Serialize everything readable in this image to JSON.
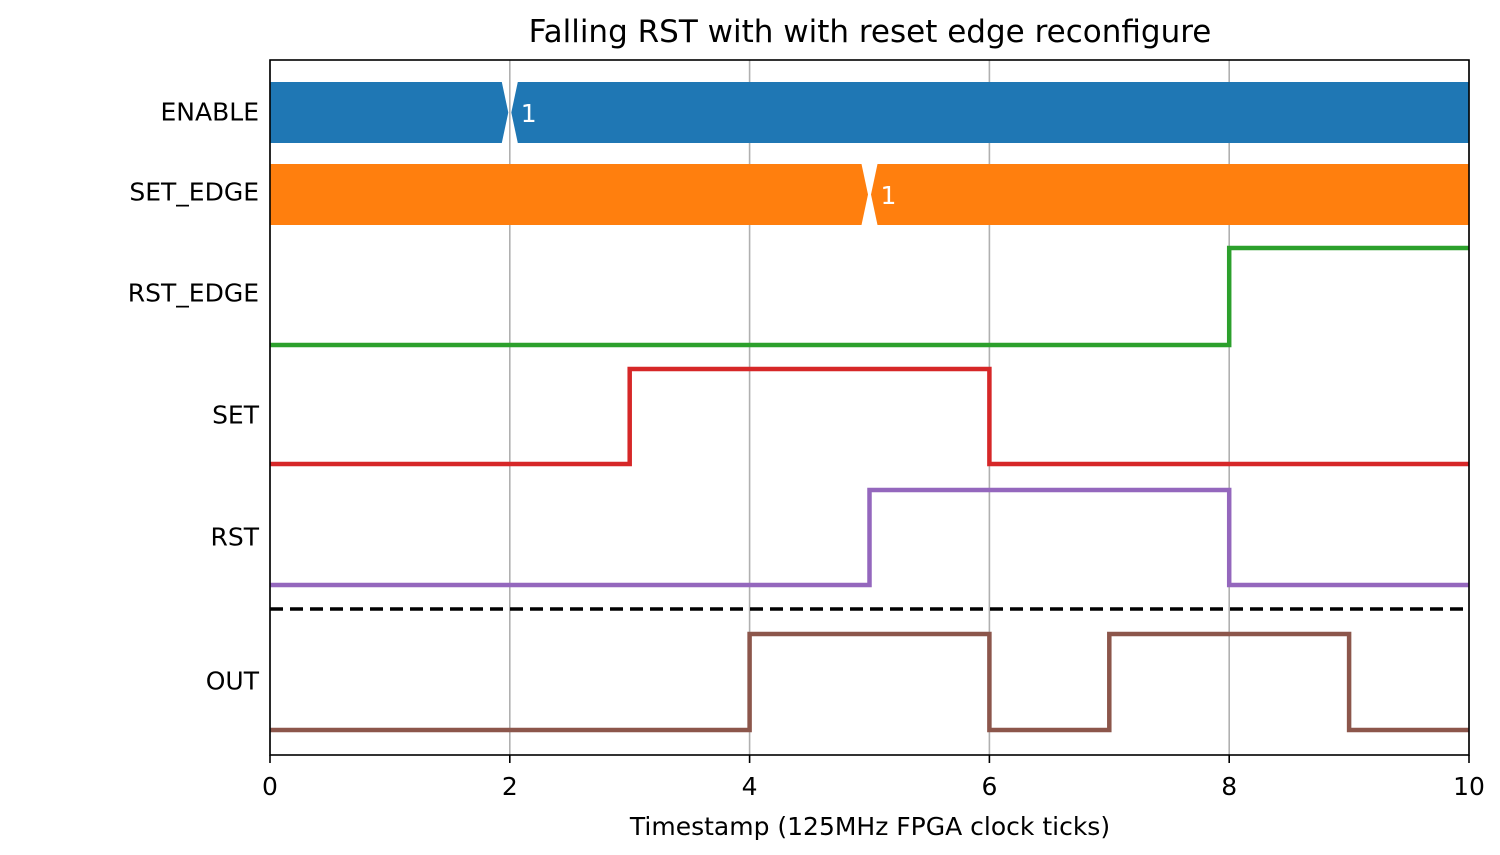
{
  "chart_data": {
    "type": "line",
    "title": "Falling RST with with reset edge reconfigure",
    "xlabel": "Timestamp (125MHz FPGA clock ticks)",
    "ylabel": "",
    "xlim": [
      0,
      10
    ],
    "x_ticks": [
      "0",
      "2",
      "4",
      "6",
      "8",
      "10"
    ],
    "grid": "vertical lines at x ticks",
    "legend": "none",
    "signals": [
      {
        "name": "ENABLE",
        "kind": "bus",
        "color": "#1f77b4",
        "transitions": [
          {
            "x": 2,
            "label": "1"
          }
        ]
      },
      {
        "name": "SET_EDGE",
        "kind": "bus",
        "color": "#ff7f0e",
        "transitions": [
          {
            "x": 5,
            "label": "1"
          }
        ]
      },
      {
        "name": "RST_EDGE",
        "kind": "digital",
        "color": "#2ca02c",
        "x": [
          0,
          8,
          10
        ],
        "y": [
          0,
          1,
          1
        ]
      },
      {
        "name": "SET",
        "kind": "digital",
        "color": "#d62728",
        "x": [
          0,
          3,
          6,
          10
        ],
        "y": [
          0,
          1,
          0,
          0
        ]
      },
      {
        "name": "RST",
        "kind": "digital",
        "color": "#9467bd",
        "x": [
          0,
          5,
          8,
          10
        ],
        "y": [
          0,
          1,
          0,
          0
        ]
      },
      {
        "name": "OUT",
        "kind": "digital",
        "color": "#8c564b",
        "x": [
          0,
          4,
          6,
          7,
          9,
          10
        ],
        "y": [
          0,
          1,
          0,
          1,
          0,
          0
        ]
      }
    ],
    "separator": {
      "after": "RST",
      "style": "dashed",
      "color": "#000000"
    }
  }
}
